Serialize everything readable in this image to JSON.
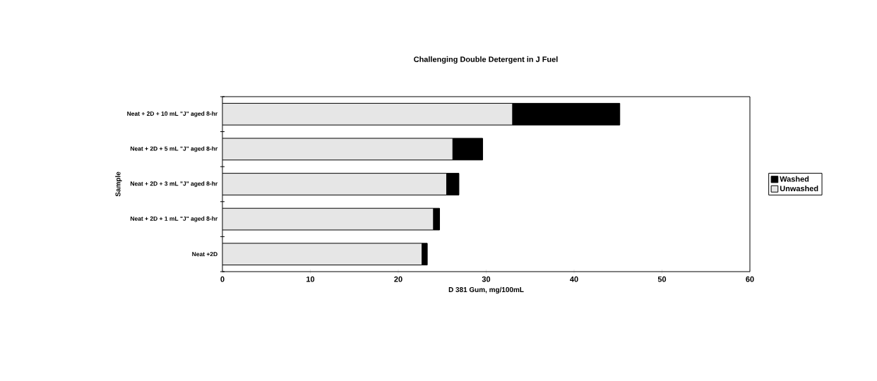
{
  "chart_data": {
    "type": "bar",
    "orientation": "horizontal",
    "stacked": true,
    "title": "Challenging Double Detergent in J Fuel",
    "xlabel": "D 381 Gum, mg/100mL",
    "ylabel": "Sample",
    "categories": [
      "Neat + 2D + 10 mL \"J\" aged 8-hr",
      "Neat + 2D + 5 mL \"J\" aged 8-hr",
      "Neat + 2D + 3 mL \"J\" aged 8-hr",
      "Neat + 2D + 1 mL \"J\" aged 8-hr",
      "Neat +2D"
    ],
    "series": [
      {
        "name": "Unwashed",
        "color": "#e6e6e6",
        "values": [
          33.0,
          26.2,
          25.5,
          24.0,
          22.7
        ]
      },
      {
        "name": "Washed",
        "color": "#000000",
        "values": [
          12.2,
          3.4,
          1.4,
          0.7,
          0.6
        ]
      }
    ],
    "xlim": [
      0,
      60
    ],
    "xticks": [
      0,
      10,
      20,
      30,
      40,
      50,
      60
    ],
    "legend": "right",
    "grid": false
  }
}
